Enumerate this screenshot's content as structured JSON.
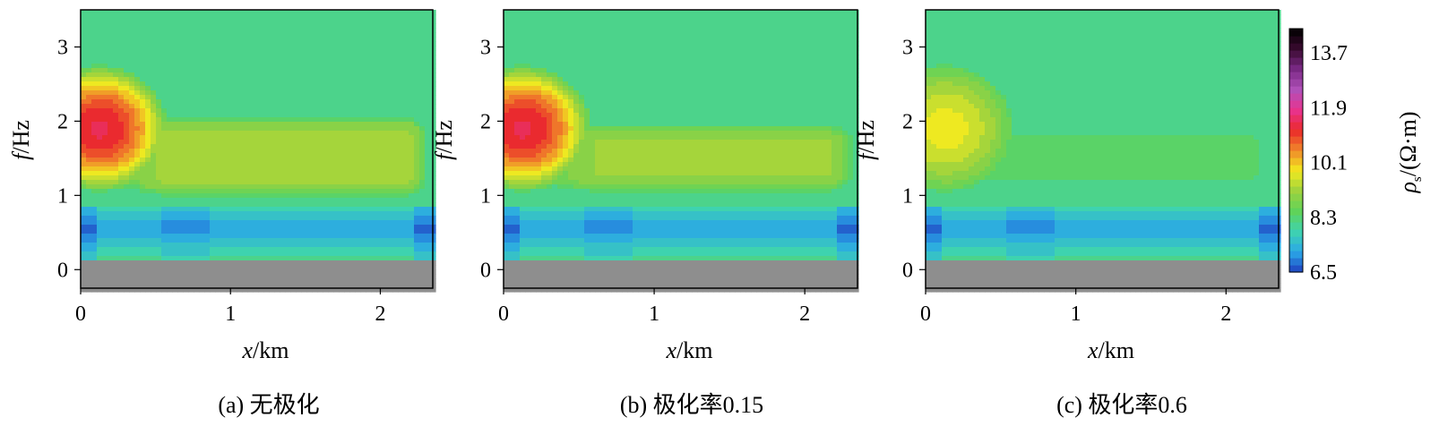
{
  "chart_data": [
    {
      "type": "heatmap",
      "caption": "(a) 无极化",
      "xlabel": "x/km",
      "ylabel": "f/Hz",
      "xlim": [
        0,
        2.35
      ],
      "ylim": [
        -0.25,
        3.5
      ],
      "xticks": [
        0,
        1,
        2
      ],
      "yticks": [
        0,
        1,
        2,
        3
      ],
      "anomaly": {
        "body_rho": 9.2,
        "band_x_end_km": 2.15,
        "band_f": [
          1.05,
          2.0
        ],
        "left_lobe_peak_rho": 11.0
      }
    },
    {
      "type": "heatmap",
      "caption": "(b) 极化率0.15",
      "xlabel": "x/km",
      "ylabel": "f/Hz",
      "xlim": [
        0,
        2.35
      ],
      "ylim": [
        -0.25,
        3.5
      ],
      "xticks": [
        0,
        1,
        2
      ],
      "yticks": [
        0,
        1,
        2,
        3
      ],
      "anomaly": {
        "body_rho": 9.0,
        "band_x_end_km": 2.15,
        "band_f": [
          1.1,
          1.9
        ],
        "left_lobe_peak_rho": 11.0
      }
    },
    {
      "type": "heatmap",
      "caption": "(c) 极化率0.6",
      "xlabel": "x/km",
      "ylabel": "f/Hz",
      "xlim": [
        0,
        2.35
      ],
      "ylim": [
        -0.25,
        3.5
      ],
      "xticks": [
        0,
        1,
        2
      ],
      "yticks": [
        0,
        1,
        2,
        3
      ],
      "anomaly": {
        "body_rho": 8.3,
        "band_x_end_km": 2.1,
        "band_f": [
          1.2,
          1.8
        ],
        "left_lobe_peak_rho": 9.4
      }
    }
  ],
  "colorbar": {
    "label_prefix": "ρ",
    "label_sub": "s",
    "label_unit": "/(Ω·m)",
    "ticks": [
      6.5,
      8.3,
      10.1,
      11.9,
      13.7
    ],
    "tick_labels": [
      "6.5",
      "8.3",
      "10.1",
      "11.9",
      "13.7"
    ],
    "range": [
      6.5,
      14.5
    ],
    "colors": [
      "#1f3fbf",
      "#2aa7e8",
      "#3ed3b0",
      "#5fd35a",
      "#9cd23f",
      "#f2ea1f",
      "#f08a2a",
      "#ea2a2a",
      "#e8338f",
      "#b050b8",
      "#7b2a86",
      "#3a0a30",
      "#000000"
    ]
  }
}
